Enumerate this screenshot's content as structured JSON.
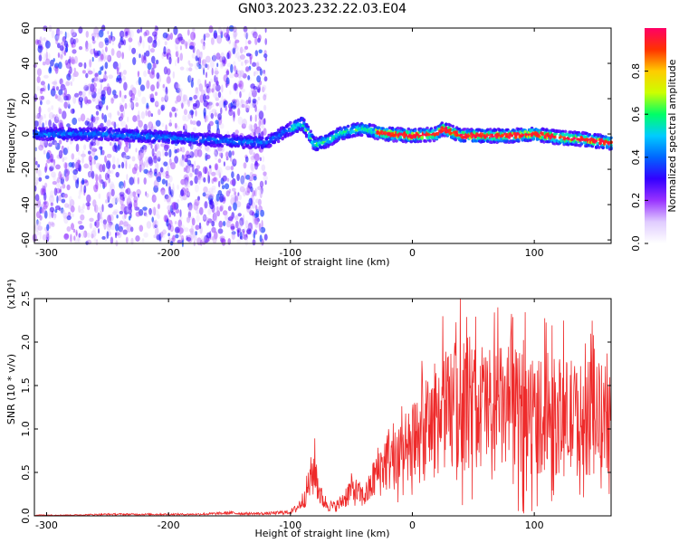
{
  "figure": {
    "title": "GN03.2023.232.22.03.E04"
  },
  "chart_data": [
    {
      "type": "heatmap",
      "xlabel": "Height of straight line (km)",
      "ylabel": "Frequency (Hz)",
      "xlim": [
        -310,
        163
      ],
      "ylim": [
        -62,
        60
      ],
      "x_ticks": [
        -300,
        -200,
        -100,
        0,
        100
      ],
      "y_ticks": [
        60,
        40,
        20,
        0,
        -20,
        -40,
        -60
      ],
      "colorbar": {
        "label": "Normalized spectral amplitude",
        "range": [
          0.0,
          1.0
        ],
        "ticks": [
          0.0,
          0.2,
          0.4,
          0.6,
          0.8
        ],
        "colormap": [
          "#ffffff",
          "#e0ccff",
          "#9933ff",
          "#3300ff",
          "#0066ff",
          "#00ccff",
          "#00ff66",
          "#ccff00",
          "#ffcc00",
          "#ff3300",
          "#ff0066"
        ]
      },
      "ridge": {
        "x": [
          -310,
          -250,
          -200,
          -150,
          -120,
          -100,
          -90,
          -80,
          -70,
          -60,
          -50,
          -40,
          -30,
          -20,
          0,
          20,
          25,
          40,
          60,
          80,
          100,
          120,
          140,
          163
        ],
        "frequency": [
          0,
          0,
          -2,
          -4,
          -5,
          3,
          6,
          -6,
          -4,
          0,
          2,
          3,
          1,
          0,
          -1,
          0,
          3,
          -1,
          -1,
          -1,
          0,
          -2,
          -3,
          -5
        ]
      },
      "noise_region_x": [
        -310,
        -120
      ]
    },
    {
      "type": "line",
      "xlabel": "Height of straight line (km)",
      "ylabel": "SNR (10 * v/v)",
      "scale_note": "(x10⁴)",
      "xlim": [
        -310,
        163
      ],
      "ylim": [
        0.0,
        2.5
      ],
      "x_ticks": [
        -300,
        -200,
        -100,
        0,
        100
      ],
      "y_ticks": [
        0.0,
        0.5,
        1.0,
        1.5,
        2.0,
        2.5
      ],
      "y_tick_labels": [
        "0.0",
        "0.5",
        "1.0",
        "1.5",
        "2.0",
        "2.5"
      ],
      "color": "#ee2a2a",
      "series": [
        {
          "x": [
            -310,
            -280,
            -250,
            -220,
            -200,
            -180,
            -160,
            -150,
            -140,
            -120,
            -100,
            -95,
            -90,
            -85,
            -80,
            -78,
            -75,
            -70,
            -65,
            -60,
            -55,
            -50,
            -45,
            -40,
            -35,
            -30,
            -25,
            -20,
            -15,
            -10,
            -5,
            0,
            5,
            10,
            15,
            20,
            25,
            30,
            35,
            40,
            45,
            50,
            55,
            60,
            70,
            80,
            90,
            100,
            110,
            120,
            130,
            140,
            150,
            160,
            163
          ],
          "y": [
            0.01,
            0.01,
            0.02,
            0.02,
            0.02,
            0.02,
            0.03,
            0.04,
            0.03,
            0.03,
            0.05,
            0.1,
            0.2,
            0.4,
            0.65,
            0.45,
            0.25,
            0.15,
            0.12,
            0.15,
            0.25,
            0.35,
            0.3,
            0.25,
            0.35,
            0.55,
            0.65,
            0.75,
            0.8,
            0.85,
            0.85,
            0.9,
            1.0,
            1.1,
            1.2,
            1.3,
            1.35,
            1.4,
            1.45,
            1.45,
            1.5,
            1.5,
            1.45,
            1.45,
            1.4,
            1.4,
            1.35,
            1.35,
            1.3,
            1.3,
            1.3,
            1.25,
            1.3,
            1.25,
            1.2
          ]
        }
      ]
    }
  ]
}
